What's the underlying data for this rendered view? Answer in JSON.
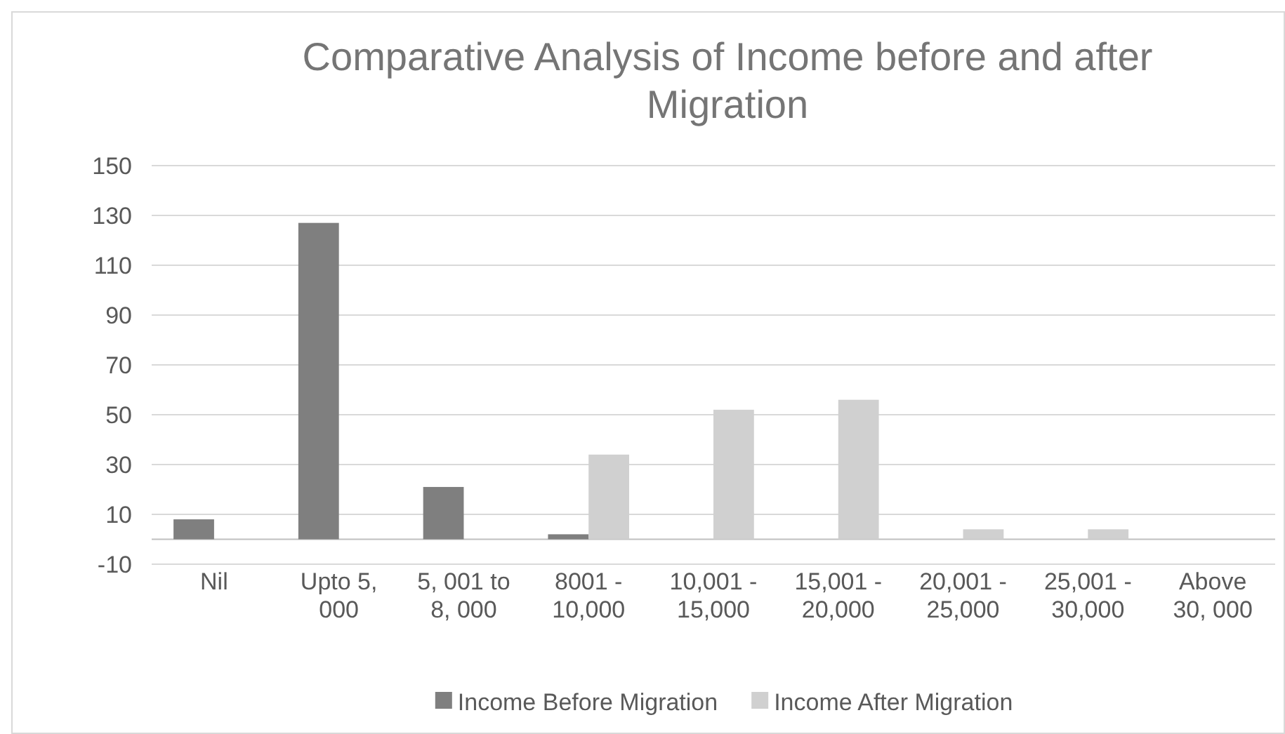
{
  "chart_data": {
    "type": "bar",
    "title": "Comparative Analysis of Income  before and after Migration",
    "categories": [
      "Nil",
      "Upto 5, 000",
      "5, 001 to 8, 000",
      "8001 - 10,000",
      "10,001 - 15,000",
      "15,001 - 20,000",
      "20,001 - 25,000",
      "25,001 - 30,000",
      "Above 30, 000"
    ],
    "series": [
      {
        "name": "Income Before Migration",
        "color": "#7f7f7f",
        "values": [
          8,
          127,
          21,
          2,
          0,
          0,
          0,
          0,
          0
        ]
      },
      {
        "name": "Income After Migration",
        "color": "#d0d0d0",
        "values": [
          0,
          0,
          0,
          34,
          52,
          56,
          4,
          4,
          0
        ]
      }
    ],
    "ylim": [
      -10,
      150
    ],
    "yticks": [
      -10,
      10,
      30,
      50,
      70,
      90,
      110,
      130,
      150
    ],
    "grid": "y",
    "legend": "bottom"
  }
}
